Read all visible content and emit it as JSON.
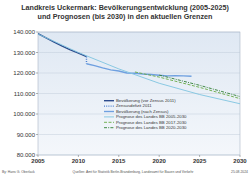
{
  "chart_data": {
    "type": "line",
    "title": "Landkreis Uckermark:  Bevölkerungsentwicklung (2005-2025)",
    "subtitle": "und Prognosen (bis 2030) in den aktuellen Grenzen",
    "annotations": [
      "By: Hans G. Oberlack",
      "Quellen: Amt für Statistik Berlin-Brandenburg, Landesamt für Bauen und Verkehr",
      "25.08.2024"
    ],
    "xlim": [
      2005,
      2030
    ],
    "xticks": [
      2005,
      2010,
      2015,
      2020,
      2025,
      2030
    ],
    "ylim": [
      80000,
      140000
    ],
    "yticks": [
      {
        "value": 80000,
        "label": "80.000"
      },
      {
        "value": 90000,
        "label": "90.000"
      },
      {
        "value": 100000,
        "label": "100.000"
      },
      {
        "value": 110000,
        "label": "110.000"
      },
      {
        "value": 120000,
        "label": "120.000"
      },
      {
        "value": 130000,
        "label": "130.000"
      },
      {
        "value": 140000,
        "label": "140.000"
      }
    ],
    "grid": true,
    "legend": "bottom-center",
    "series": [
      {
        "name": "Bevölkerung (vor Zensus 2011)",
        "color": "#2c4a8c",
        "line_style": "solid",
        "x": [
          2005,
          2006,
          2007,
          2008,
          2009,
          2010,
          2011
        ],
        "values": [
          139200,
          137100,
          135100,
          133100,
          131300,
          129700,
          128000
        ]
      },
      {
        "name": "Zensusdefizit 2011",
        "color": "#4a7fd0",
        "line_style": "dotted",
        "x": [
          2011,
          2011
        ],
        "values": [
          128000,
          124500
        ]
      },
      {
        "name": "Bevölkerung (nach Zensus)",
        "color": "#6fa0e0",
        "line_style": "solid",
        "x": [
          2011,
          2012,
          2013,
          2014,
          2015,
          2016,
          2017,
          2018,
          2019,
          2020,
          2021,
          2022,
          2023,
          2024
        ],
        "values": [
          124500,
          123600,
          122500,
          121500,
          121000,
          120000,
          119900,
          119500,
          119300,
          118900,
          118600,
          118700,
          118600,
          118400
        ]
      },
      {
        "name": "Prognose des Landes BB 2005-2030",
        "color": "#7fc4e0",
        "line_style": "solid",
        "x": [
          2005,
          2010,
          2015,
          2020,
          2025,
          2030
        ],
        "values": [
          139000,
          130000,
          122000,
          115000,
          109500,
          105000
        ]
      },
      {
        "name": "Prognose des Landes BB 2017-2030",
        "color": "#66aa44",
        "line_style": "dashed",
        "x": [
          2017,
          2020,
          2025,
          2030
        ],
        "values": [
          120500,
          118000,
          113000,
          107500
        ]
      },
      {
        "name": "Prognose des Landes BB 2020-2030",
        "color": "#2e7d32",
        "line_style": "dashdot",
        "x": [
          2020,
          2025,
          2030
        ],
        "values": [
          119000,
          114000,
          108500
        ]
      }
    ]
  }
}
